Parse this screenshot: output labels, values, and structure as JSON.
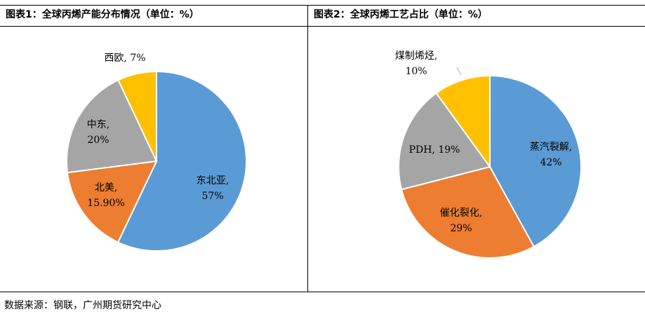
{
  "charts": [
    {
      "title": "图表1：全球丙烯产能分布情况（单位：%）"
    },
    {
      "title": "图表2：全球丙烯工艺占比（单位：%）"
    }
  ],
  "source": "数据来源：钢联，广州期货研究中心",
  "colors": {
    "blue": "#5b9bd5",
    "orange": "#ed7d31",
    "gray": "#a5a5a5",
    "gold": "#ffc000",
    "border": "#ffffff"
  },
  "chart_data": [
    {
      "type": "pie",
      "title": "图表1：全球丙烯产能分布情况（单位：%）",
      "slices": [
        {
          "name": "东北亚",
          "value": 57,
          "label": "57%",
          "color": "#5b9bd5"
        },
        {
          "name": "北美",
          "value": 15.9,
          "label": "15.90%",
          "color": "#ed7d31"
        },
        {
          "name": "中东",
          "value": 20,
          "label": "20%",
          "color": "#a5a5a5"
        },
        {
          "name": "西欧",
          "value": 7,
          "label": "7%",
          "color": "#ffc000"
        }
      ]
    },
    {
      "type": "pie",
      "title": "图表2：全球丙烯工艺占比（单位：%）",
      "slices": [
        {
          "name": "蒸汽裂解",
          "value": 42,
          "label": "42%",
          "color": "#5b9bd5"
        },
        {
          "name": "催化裂化",
          "value": 29,
          "label": "29%",
          "color": "#ed7d31"
        },
        {
          "name": "PDH",
          "value": 19,
          "label": "19%",
          "color": "#a5a5a5"
        },
        {
          "name": "煤制烯烃",
          "value": 10,
          "label": "10%",
          "color": "#ffc000"
        }
      ]
    }
  ]
}
